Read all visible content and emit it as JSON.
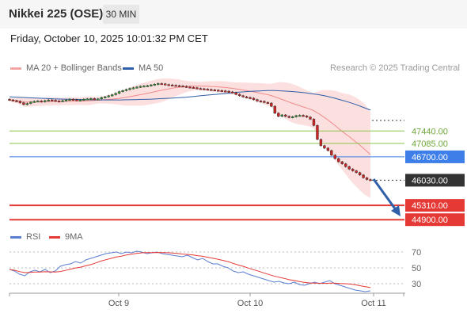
{
  "header": {
    "title": "Nikkei 225 (OSE)",
    "interval": "30 MIN"
  },
  "timestamp": "Friday, October 10, 2025 10:01:32 PM CET",
  "legend": {
    "bollinger": {
      "label": "MA 20 + Bollinger Bands",
      "color": "#f4a5a5"
    },
    "ma50": {
      "label": "MA 50",
      "color": "#2f5fa8"
    }
  },
  "credit": "Research © 2025 Trading Central",
  "rsi_legend": {
    "rsi": {
      "label": "RSI",
      "color": "#5a7fd1"
    },
    "ma9": {
      "label": "9MA",
      "color": "#e53935"
    }
  },
  "chart_data": {
    "type": "candlestick",
    "x_ticks": [
      "Oct 9",
      "Oct 10",
      "Oct 11"
    ],
    "price_levels": [
      {
        "value": "47440.00",
        "kind": "resistance",
        "color": "#8bc34a"
      },
      {
        "value": "47085.00",
        "kind": "resistance",
        "color": "#8bc34a"
      },
      {
        "value": "46700.00",
        "kind": "pivot",
        "color": "#3d7ee8"
      },
      {
        "value": "46030.00",
        "kind": "last",
        "color": "#333333"
      },
      {
        "value": "45310.00",
        "kind": "support",
        "color": "#e53935"
      },
      {
        "value": "44900.00",
        "kind": "support",
        "color": "#e53935"
      }
    ],
    "price_series_close": [
      48330,
      48310,
      48290,
      48250,
      48200,
      48230,
      48270,
      48290,
      48300,
      48280,
      48310,
      48330,
      48320,
      48300,
      48290,
      48310,
      48330,
      48350,
      48340,
      48320,
      48330,
      48350,
      48360,
      48370,
      48350,
      48360,
      48400,
      48420,
      48450,
      48480,
      48520,
      48570,
      48600,
      48630,
      48660,
      48680,
      48700,
      48720,
      48730,
      48740,
      48760,
      48780,
      48800,
      48790,
      48770,
      48760,
      48750,
      48740,
      48730,
      48720,
      48700,
      48690,
      48680,
      48660,
      48650,
      48640,
      48630,
      48620,
      48610,
      48600,
      48590,
      48580,
      48560,
      48540,
      48490,
      48450,
      48420,
      48400,
      48380,
      48340,
      48300,
      48290,
      48260,
      48240,
      48150,
      47950,
      47860,
      47900,
      47860,
      47830,
      47850,
      47880,
      47890,
      47870,
      47840,
      47780,
      47600,
      47200,
      47020,
      46950,
      46880,
      46750,
      46650,
      46560,
      46500,
      46420,
      46350,
      46300,
      46250,
      46180,
      46100,
      46050,
      46030
    ],
    "ma50": [
      48420,
      48410,
      48400,
      48390,
      48380,
      48370,
      48360,
      48355,
      48350,
      48345,
      48340,
      48335,
      48330,
      48330,
      48330,
      48330,
      48335,
      48340,
      48345,
      48350,
      48360,
      48370,
      48380,
      48395,
      48410,
      48430,
      48450,
      48470,
      48490,
      48510,
      48530,
      48550,
      48565,
      48580,
      48590,
      48600,
      48600,
      48590,
      48575,
      48560,
      48540,
      48510,
      48480,
      48440,
      48390,
      48330,
      48270,
      48200,
      48120,
      48040
    ],
    "rsi": {
      "levels": [
        70,
        50,
        30
      ],
      "rsi_values": [
        48,
        46,
        42,
        40,
        45,
        47,
        45,
        48,
        44,
        46,
        52,
        54,
        55,
        58,
        56,
        60,
        62,
        64,
        66,
        68,
        69,
        70,
        68,
        70,
        69,
        71,
        70,
        68,
        69,
        70,
        68,
        67,
        66,
        65,
        64,
        66,
        63,
        60,
        62,
        58,
        55,
        55,
        52,
        50,
        46,
        44,
        45,
        42,
        40,
        38,
        36,
        34,
        32,
        33,
        31,
        30,
        32,
        29,
        28,
        30,
        32,
        30,
        32,
        34,
        30,
        28,
        26,
        24,
        22,
        21,
        20,
        21
      ]
    }
  }
}
